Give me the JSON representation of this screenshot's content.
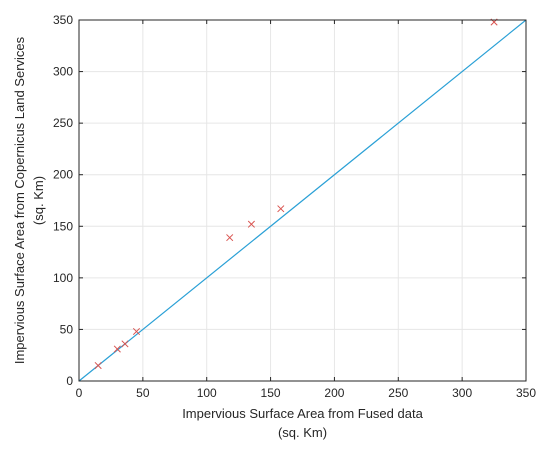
{
  "chart_data": {
    "type": "scatter",
    "title": "",
    "xlabel": [
      "Impervious Surface Area from Fused data",
      "(sq. Km)"
    ],
    "ylabel": [
      "Impervious Surface Area from Copernicus Land Services",
      "(sq. Km)"
    ],
    "xlim": [
      0,
      350
    ],
    "ylim": [
      0,
      350
    ],
    "xticks": [
      0,
      50,
      100,
      150,
      200,
      250,
      300,
      350
    ],
    "yticks": [
      0,
      50,
      100,
      150,
      200,
      250,
      300,
      350
    ],
    "grid": true,
    "series": [
      {
        "marker": "x",
        "color": "#d9534f",
        "points": [
          {
            "x": 15,
            "y": 15
          },
          {
            "x": 30,
            "y": 31
          },
          {
            "x": 36,
            "y": 36
          },
          {
            "x": 45,
            "y": 48
          },
          {
            "x": 118,
            "y": 139
          },
          {
            "x": 135,
            "y": 152
          },
          {
            "x": 158,
            "y": 167
          },
          {
            "x": 325,
            "y": 348
          }
        ]
      }
    ],
    "reference_line": {
      "color": "#2aa0d6",
      "points": [
        {
          "x": 0,
          "y": 0
        },
        {
          "x": 350,
          "y": 350
        }
      ]
    },
    "axis_color": "#262626",
    "grid_color": "#e6e6e6"
  }
}
